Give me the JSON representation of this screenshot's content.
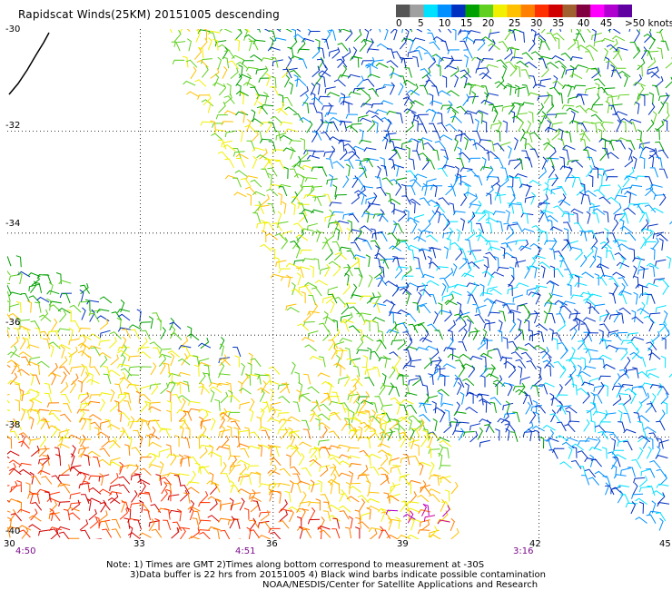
{
  "title": "Rapidscat Winds(25KM) 20151005 descending",
  "colorbar": {
    "ticks": [
      "0",
      "5",
      "10",
      "15",
      "20",
      "25",
      "30",
      "35",
      "40",
      "45",
      ">50 knots"
    ],
    "colors": [
      "#555555",
      "#a0a0a0",
      "#00e0ff",
      "#0090ff",
      "#0030c0",
      "#00a000",
      "#60d020",
      "#f0f000",
      "#ffc000",
      "#ff8000",
      "#ff3000",
      "#d00000",
      "#a06030",
      "#800040",
      "#ff00ff",
      "#b000d0",
      "#6000a0"
    ]
  },
  "lat_labels": [
    "-30",
    "-32",
    "-34",
    "-36",
    "-38",
    "-40"
  ],
  "lon_labels": [
    "30",
    "33",
    "36",
    "39",
    "42",
    "45"
  ],
  "time_labels": [
    "4:50",
    "4:51",
    "3:16"
  ],
  "notes": {
    "line1": "Note: 1) Times are GMT 2)Times along bottom correspond to measurement at -30S",
    "line2": "3)Data buffer is 22 hrs from 20151005 4) Black wind barbs indicate possible contamination",
    "line3": "NOAA/NESDIS/Center for Satellite Applications and Research"
  },
  "map_data": {
    "lat_range": [
      -40,
      -30
    ],
    "lon_range": [
      30,
      45
    ],
    "grid_lats": [
      -32,
      -34,
      -36,
      -38
    ],
    "grid_lons": [
      33,
      36,
      39,
      42
    ]
  }
}
